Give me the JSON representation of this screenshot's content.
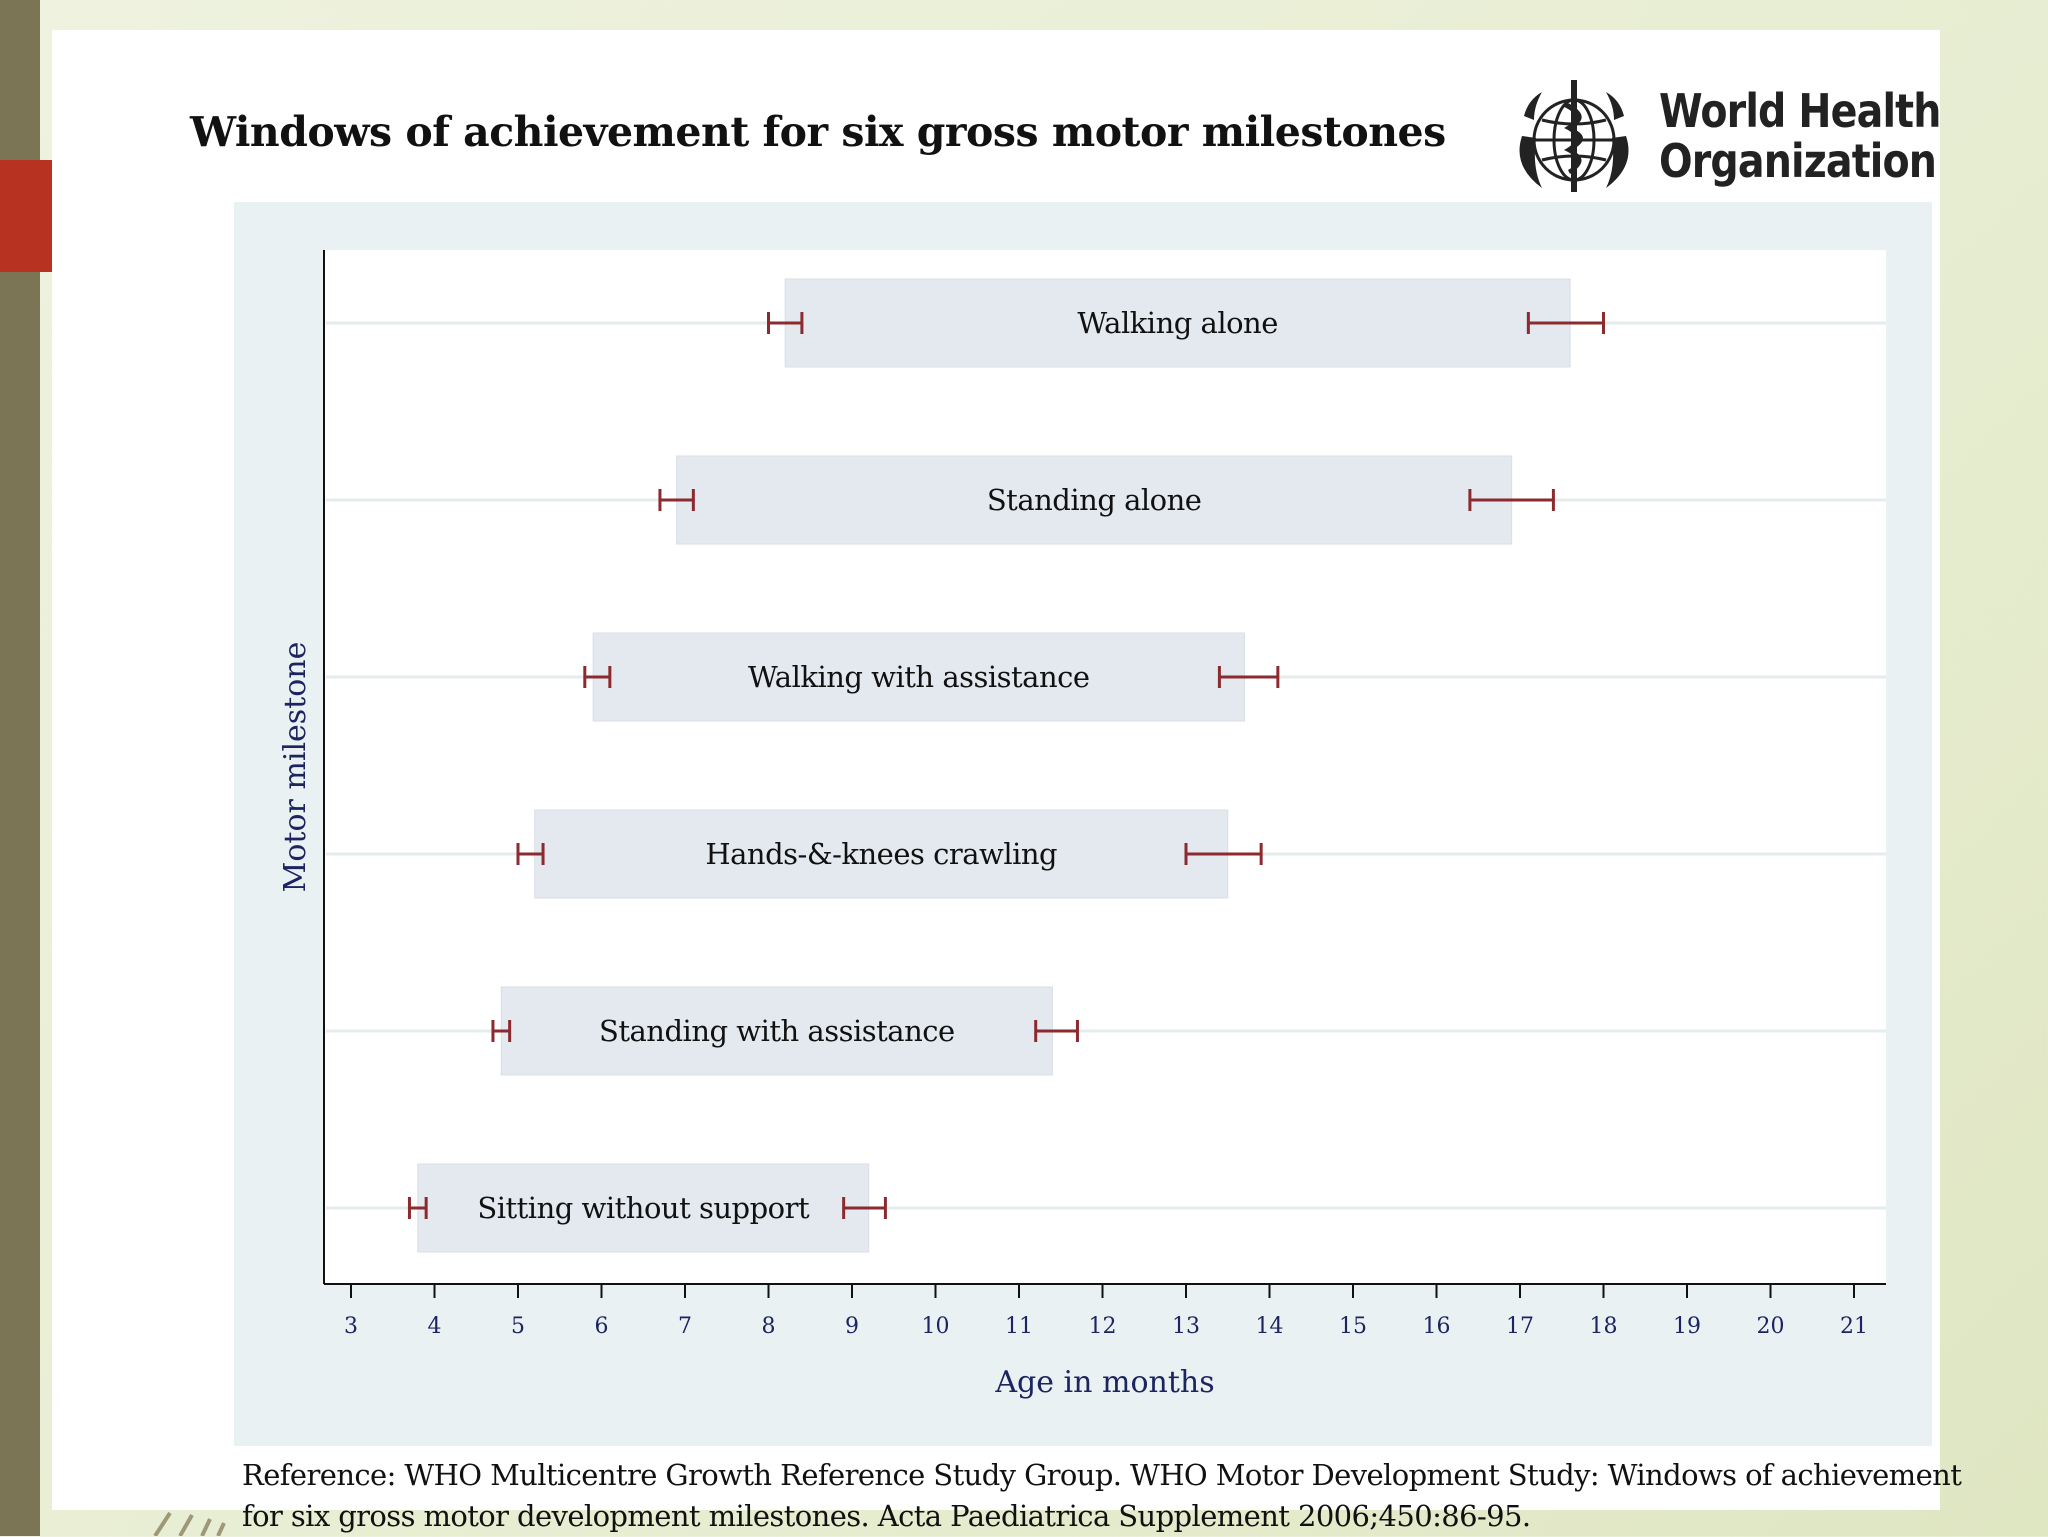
{
  "slide": {
    "title": "Windows of achievement for six gross motor milestones",
    "logo": {
      "icon": "who-emblem-icon",
      "line1": "World Health",
      "line2": "Organization"
    },
    "reference": {
      "line1": "Reference: WHO Multicentre Growth Reference Study Group. WHO Motor Development Study: Windows of achievement",
      "line2": "for six gross motor development milestones. Acta Paediatrica Supplement 2006;450:86-95."
    }
  },
  "colors": {
    "panel": "#eaf1f3",
    "bar": "#e3e9ef",
    "errorbar": "#8b2a2f",
    "axis": "#1c2560"
  },
  "chart_data": {
    "type": "range-bar",
    "title": "Windows of achievement for six gross motor milestones",
    "xlabel": "Age in months",
    "ylabel": "Motor milestone",
    "xlim": [
      3,
      21
    ],
    "xticks": [
      3,
      4,
      5,
      6,
      7,
      8,
      9,
      10,
      11,
      12,
      13,
      14,
      15,
      16,
      17,
      18,
      19,
      20,
      21
    ],
    "grid": true,
    "milestones": [
      {
        "name": "Sitting without support",
        "start": 3.8,
        "end": 9.2,
        "start_ci": [
          3.7,
          3.9
        ],
        "end_ci": [
          8.9,
          9.4
        ]
      },
      {
        "name": "Standing with assistance",
        "start": 4.8,
        "end": 11.4,
        "start_ci": [
          4.7,
          4.9
        ],
        "end_ci": [
          11.2,
          11.7
        ]
      },
      {
        "name": "Hands-&-knees crawling",
        "start": 5.2,
        "end": 13.5,
        "start_ci": [
          5.0,
          5.3
        ],
        "end_ci": [
          13.0,
          13.9
        ]
      },
      {
        "name": "Walking with assistance",
        "start": 5.9,
        "end": 13.7,
        "start_ci": [
          5.8,
          6.1
        ],
        "end_ci": [
          13.4,
          14.1
        ]
      },
      {
        "name": "Standing alone",
        "start": 6.9,
        "end": 16.9,
        "start_ci": [
          6.7,
          7.1
        ],
        "end_ci": [
          16.4,
          17.4
        ]
      },
      {
        "name": "Walking alone",
        "start": 8.2,
        "end": 17.6,
        "start_ci": [
          8.0,
          8.4
        ],
        "end_ci": [
          17.1,
          18.0
        ]
      }
    ]
  }
}
